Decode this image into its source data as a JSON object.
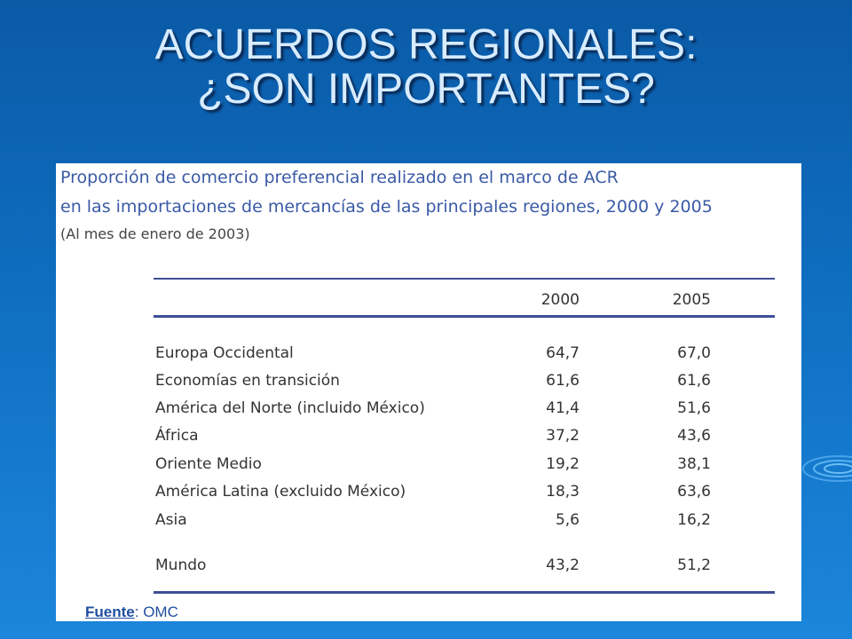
{
  "slide": {
    "title_line1": "ACUERDOS REGIONALES:",
    "title_line2": "¿SON IMPORTANTES?"
  },
  "table": {
    "title_line1": "Proporción de comercio preferencial realizado en el marco de ACR",
    "title_line2": "en las importaciones de mercancías de las principales regiones, 2000 y 2005",
    "subtitle": "(Al mes de enero de 2003)",
    "headers": [
      "2000",
      "2005"
    ],
    "rows": [
      {
        "label": "Europa Occidental",
        "v2000": "64,7",
        "v2005": "67,0"
      },
      {
        "label": "Economías en transición",
        "v2000": "61,6",
        "v2005": "61,6"
      },
      {
        "label": "América del Norte (incluido México)",
        "v2000": "41,4",
        "v2005": "51,6"
      },
      {
        "label": "África",
        "v2000": "37,2",
        "v2005": "43,6"
      },
      {
        "label": "Oriente Medio",
        "v2000": "19,2",
        "v2005": "38,1"
      },
      {
        "label": "América Latina (excluido México)",
        "v2000": "18,3",
        "v2005": "63,6"
      },
      {
        "label": "Asia",
        "v2000": "5,6",
        "v2005": "16,2"
      }
    ],
    "total": {
      "label": "Mundo",
      "v2000": "43,2",
      "v2005": "51,2"
    }
  },
  "source": {
    "key": "Fuente",
    "separator": ":",
    "value": " OMC"
  },
  "colors": {
    "background": "#0f6ec0",
    "title_text": "#d7ecff",
    "table_title": "#3a5aa6",
    "rule": "#3d4f96"
  }
}
